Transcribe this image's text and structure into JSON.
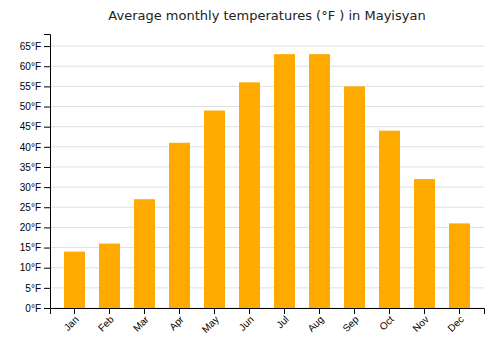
{
  "chart_data": {
    "type": "bar",
    "title": "Average monthly temperatures (°F ) in Mayisyan",
    "categories": [
      "Jan",
      "Feb",
      "Mar",
      "Apr",
      "May",
      "Jun",
      "Jul",
      "Aug",
      "Sep",
      "Oct",
      "Nov",
      "Dec"
    ],
    "values": [
      14,
      16,
      27,
      41,
      49,
      56,
      63,
      63,
      55,
      44,
      32,
      21
    ],
    "color": "#FFAA00",
    "ylim": [
      0,
      68
    ],
    "yticks": [
      {
        "value": 0,
        "label": "0°F"
      },
      {
        "value": 5,
        "label": "5°F"
      },
      {
        "value": 10,
        "label": "10°F"
      },
      {
        "value": 15,
        "label": "15°F"
      },
      {
        "value": 20,
        "label": "20°F"
      },
      {
        "value": 25,
        "label": "25°F"
      },
      {
        "value": 30,
        "label": "30°F"
      },
      {
        "value": 35,
        "label": "35°F"
      },
      {
        "value": 40,
        "label": "40°F"
      },
      {
        "value": 45,
        "label": "45°F"
      },
      {
        "value": 50,
        "label": "50°F"
      },
      {
        "value": 55,
        "label": "55°F"
      },
      {
        "value": 60,
        "label": "60°F"
      },
      {
        "value": 65,
        "label": "65°F"
      }
    ],
    "grid": true
  }
}
